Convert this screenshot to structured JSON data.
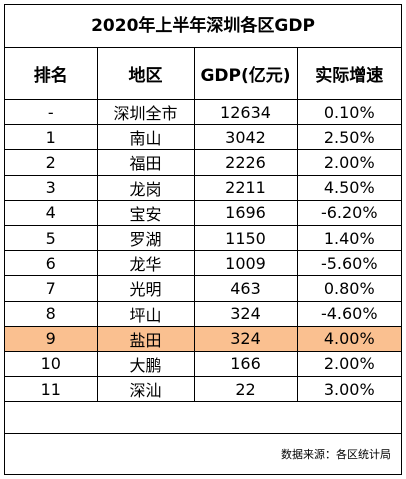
{
  "title": "2020年上半年深圳各区GDP",
  "headers": [
    "排名",
    "地区",
    "GDP(亿元)",
    "实际增速"
  ],
  "rows": [
    {
      "rank": "-",
      "district": "深圳全市",
      "gdp": "12634",
      "growth": "0.10%"
    },
    {
      "rank": "1",
      "district": "南山",
      "gdp": "3042",
      "growth": "2.50%"
    },
    {
      "rank": "2",
      "district": "福田",
      "gdp": "2226",
      "growth": "2.00%"
    },
    {
      "rank": "3",
      "district": "龙岗",
      "gdp": "2211",
      "growth": "4.50%"
    },
    {
      "rank": "4",
      "district": "宝安",
      "gdp": "1696",
      "growth": "-6.20%"
    },
    {
      "rank": "5",
      "district": "罗湖",
      "gdp": "1150",
      "growth": "1.40%"
    },
    {
      "rank": "6",
      "district": "龙华",
      "gdp": "1009",
      "growth": "-5.60%"
    },
    {
      "rank": "7",
      "district": "光明",
      "gdp": "463",
      "growth": "0.80%"
    },
    {
      "rank": "8",
      "district": "坪山",
      "gdp": "324",
      "growth": "-4.60%"
    },
    {
      "rank": "9",
      "district": "盐田",
      "gdp": "324",
      "growth": "4.00%"
    },
    {
      "rank": "10",
      "district": "大鹏",
      "gdp": "166",
      "growth": "2.00%"
    },
    {
      "rank": "11",
      "district": "深汕",
      "gdp": "22",
      "growth": "3.00%"
    }
  ],
  "highlight_color": "#fac090",
  "source": "数据来源：各区统计局"
}
